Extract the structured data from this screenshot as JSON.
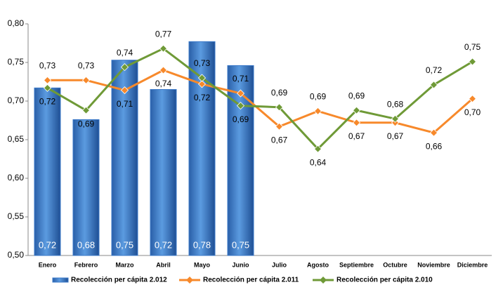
{
  "chart_data": {
    "type": "bar_line",
    "categories": [
      "Enero",
      "Febrero",
      "Marzo",
      "Abril",
      "Mayo",
      "Junio",
      "Julio",
      "Agosto",
      "Septiembre",
      "Octubre",
      "Noviembre",
      "Diciembre"
    ],
    "series": [
      {
        "name": "Recolección per cápita 2.012",
        "type": "bar",
        "color": "#3a78c8",
        "values": [
          0.717,
          0.676,
          0.753,
          0.715,
          0.777,
          0.746,
          null,
          null,
          null,
          null,
          null,
          null
        ],
        "value_labels": [
          "0,72",
          "0,68",
          "0,75",
          "0,72",
          "0,78",
          "0,75",
          null,
          null,
          null,
          null,
          null,
          null
        ]
      },
      {
        "name": "Recolección per cápita 2.011",
        "type": "line",
        "color": "#f7892b",
        "values": [
          0.727,
          0.727,
          0.714,
          0.74,
          0.722,
          0.71,
          0.667,
          0.687,
          0.672,
          0.672,
          0.659,
          0.703
        ],
        "value_labels": [
          "0,73",
          "0,73",
          "0,71",
          "0,74",
          "0,72",
          "0,71",
          "0,67",
          "0,69",
          "0,67",
          "0,67",
          "0,66",
          "0,70"
        ]
      },
      {
        "name": "Recolección per cápita 2.010",
        "type": "line",
        "color": "#6f9a37",
        "values": [
          0.717,
          0.688,
          0.744,
          0.768,
          0.73,
          0.694,
          0.692,
          0.638,
          0.688,
          0.677,
          0.721,
          0.751
        ],
        "value_labels": [
          "0,72",
          "0,69",
          "0,74",
          "0,77",
          "0,73",
          "0,69",
          "0,69",
          "0,64",
          "0,69",
          "0,68",
          "0,72",
          "0,75"
        ]
      }
    ],
    "ylim": [
      0.5,
      0.8
    ],
    "yticks": [
      {
        "value": 0.5,
        "label": "0,50"
      },
      {
        "value": 0.55,
        "label": "0,55"
      },
      {
        "value": 0.6,
        "label": "0,60"
      },
      {
        "value": 0.65,
        "label": "0,65"
      },
      {
        "value": 0.7,
        "label": "0,70"
      },
      {
        "value": 0.75,
        "label": "0,75"
      },
      {
        "value": 0.8,
        "label": "0,80"
      }
    ],
    "grid": false,
    "legend": "bottom"
  }
}
